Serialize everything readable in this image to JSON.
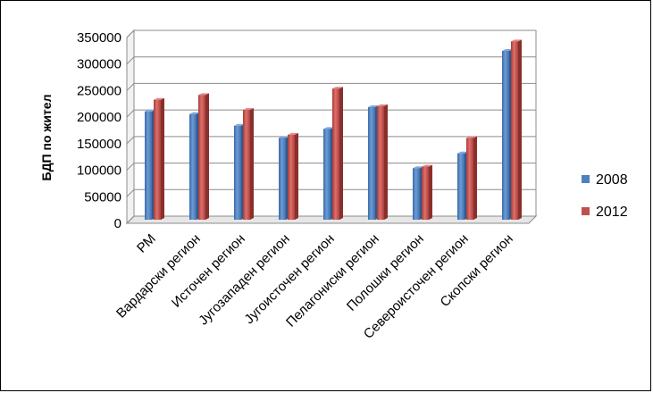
{
  "chart_data": {
    "type": "bar",
    "title": "",
    "xlabel": "",
    "ylabel": "БДП по жител",
    "ylim": [
      0,
      350000
    ],
    "yticks": [
      0,
      50000,
      100000,
      150000,
      200000,
      250000,
      300000,
      350000
    ],
    "categories": [
      "РМ",
      "Вардарски регион",
      "Источен регион",
      "Југозападен регион",
      "Југоисточен регион",
      "Пелагониски регион",
      "Полошки регион",
      "Североисточен регион",
      "Скопски регион"
    ],
    "series": [
      {
        "name": "2008",
        "color": "#4F81BD",
        "values": [
          204000,
          199000,
          177000,
          154000,
          171000,
          212000,
          97000,
          125000,
          318000
        ]
      },
      {
        "name": "2012",
        "color": "#C0504D",
        "values": [
          226000,
          235000,
          207000,
          160000,
          247000,
          214000,
          100000,
          154000,
          336000
        ]
      }
    ],
    "grid": true,
    "legend_position": "right"
  }
}
